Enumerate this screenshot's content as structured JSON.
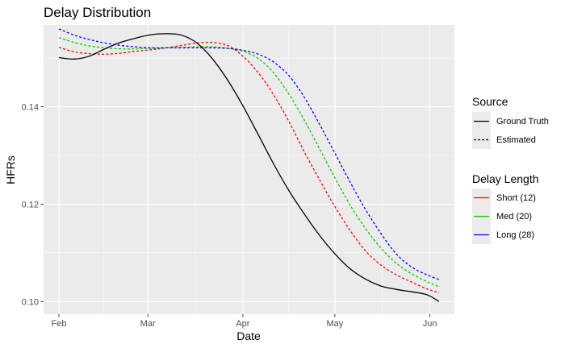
{
  "chart_data": {
    "type": "line",
    "title": "Delay Distribution",
    "xlabel": "Date",
    "ylabel": "HFRs",
    "x_ticks": [
      {
        "label": "Feb",
        "x": "2020-02-01"
      },
      {
        "label": "Mar",
        "x": "2020-03-01"
      },
      {
        "label": "Apr",
        "x": "2020-04-01"
      },
      {
        "label": "May",
        "x": "2020-05-01"
      },
      {
        "label": "Jun",
        "x": "2020-06-01"
      }
    ],
    "y_ticks": [
      {
        "label": "0.10",
        "y": 0.1
      },
      {
        "label": "0.12",
        "y": 0.12
      },
      {
        "label": "0.14",
        "y": 0.14
      }
    ],
    "xlim": [
      "2020-01-27",
      "2020-06-09"
    ],
    "ylim": [
      0.0974,
      0.1568
    ],
    "grid": true,
    "legend_position": "right",
    "legends": [
      {
        "title": "Source",
        "entries": [
          {
            "label": "Ground Truth",
            "linetype": "solid",
            "color": "#000000"
          },
          {
            "label": "Estimated",
            "linetype": "dashed",
            "color": "#000000"
          }
        ]
      },
      {
        "title": "Delay Length",
        "entries": [
          {
            "label": "Short (12)",
            "linetype": "solid",
            "color": "#ff0000"
          },
          {
            "label": "Med (20)",
            "linetype": "solid",
            "color": "#00cd00"
          },
          {
            "label": "Long (28)",
            "linetype": "solid",
            "color": "#0000ff"
          }
        ]
      }
    ],
    "series": [
      {
        "source": "Ground Truth",
        "color": "#000000",
        "linetype": "solid",
        "x": [
          "2020-02-01",
          "2020-02-06",
          "2020-02-11",
          "2020-02-16",
          "2020-02-21",
          "2020-02-26",
          "2020-03-02",
          "2020-03-07",
          "2020-03-12",
          "2020-03-17",
          "2020-03-22",
          "2020-03-27",
          "2020-04-01",
          "2020-04-06",
          "2020-04-11",
          "2020-04-16",
          "2020-04-21",
          "2020-04-26",
          "2020-05-01",
          "2020-05-06",
          "2020-05-11",
          "2020-05-16",
          "2020-05-21",
          "2020-05-26",
          "2020-05-31",
          "2020-06-04"
        ],
        "y": [
          0.1501,
          0.1498,
          0.1504,
          0.1519,
          0.1532,
          0.1541,
          0.1548,
          0.155,
          0.1547,
          0.1531,
          0.1499,
          0.1455,
          0.1402,
          0.1343,
          0.1283,
          0.1228,
          0.118,
          0.1136,
          0.1098,
          0.1067,
          0.1046,
          0.1032,
          0.1025,
          0.102,
          0.1014,
          0.1
        ]
      },
      {
        "source": "Estimated",
        "delay": "Short (12)",
        "color": "#ff0000",
        "linetype": "dashed",
        "x": [
          "2020-02-01",
          "2020-02-06",
          "2020-02-11",
          "2020-02-16",
          "2020-02-21",
          "2020-02-26",
          "2020-03-02",
          "2020-03-07",
          "2020-03-12",
          "2020-03-17",
          "2020-03-22",
          "2020-03-27",
          "2020-04-01",
          "2020-04-06",
          "2020-04-11",
          "2020-04-16",
          "2020-04-21",
          "2020-04-26",
          "2020-05-01",
          "2020-05-06",
          "2020-05-11",
          "2020-05-16",
          "2020-05-21",
          "2020-05-26",
          "2020-05-31",
          "2020-06-04"
        ],
        "y": [
          0.1522,
          0.1513,
          0.1509,
          0.1508,
          0.151,
          0.1514,
          0.1517,
          0.1521,
          0.1526,
          0.1531,
          0.1532,
          0.1526,
          0.1504,
          0.147,
          0.1425,
          0.137,
          0.1308,
          0.125,
          0.1195,
          0.1146,
          0.1104,
          0.1075,
          0.1055,
          0.104,
          0.1026,
          0.1018
        ]
      },
      {
        "source": "Estimated",
        "delay": "Med (20)",
        "color": "#00cd00",
        "linetype": "dashed",
        "x": [
          "2020-02-01",
          "2020-02-06",
          "2020-02-11",
          "2020-02-16",
          "2020-02-21",
          "2020-02-26",
          "2020-03-02",
          "2020-03-07",
          "2020-03-12",
          "2020-03-17",
          "2020-03-22",
          "2020-03-27",
          "2020-04-01",
          "2020-04-06",
          "2020-04-11",
          "2020-04-16",
          "2020-04-21",
          "2020-04-26",
          "2020-05-01",
          "2020-05-06",
          "2020-05-11",
          "2020-05-16",
          "2020-05-21",
          "2020-05-26",
          "2020-05-31",
          "2020-06-04"
        ],
        "y": [
          0.1542,
          0.1532,
          0.1525,
          0.1521,
          0.1519,
          0.1519,
          0.152,
          0.1521,
          0.1522,
          0.1523,
          0.1523,
          0.152,
          0.1514,
          0.1499,
          0.147,
          0.1426,
          0.1373,
          0.1314,
          0.1254,
          0.1198,
          0.115,
          0.111,
          0.1079,
          0.1057,
          0.1041,
          0.103
        ]
      },
      {
        "source": "Estimated",
        "delay": "Long (28)",
        "color": "#0000ff",
        "linetype": "dashed",
        "x": [
          "2020-02-01",
          "2020-02-06",
          "2020-02-11",
          "2020-02-16",
          "2020-02-21",
          "2020-02-26",
          "2020-03-02",
          "2020-03-07",
          "2020-03-12",
          "2020-03-17",
          "2020-03-22",
          "2020-03-27",
          "2020-04-01",
          "2020-04-06",
          "2020-04-11",
          "2020-04-16",
          "2020-04-21",
          "2020-04-26",
          "2020-05-01",
          "2020-05-06",
          "2020-05-11",
          "2020-05-16",
          "2020-05-21",
          "2020-05-26",
          "2020-05-31",
          "2020-06-04"
        ],
        "y": [
          0.156,
          0.1547,
          0.1538,
          0.1531,
          0.1526,
          0.1523,
          0.1521,
          0.1521,
          0.1521,
          0.1521,
          0.1521,
          0.152,
          0.1516,
          0.1508,
          0.1492,
          0.1464,
          0.142,
          0.1364,
          0.1305,
          0.1245,
          0.1189,
          0.114,
          0.1098,
          0.1071,
          0.1055,
          0.1045
        ]
      }
    ]
  }
}
